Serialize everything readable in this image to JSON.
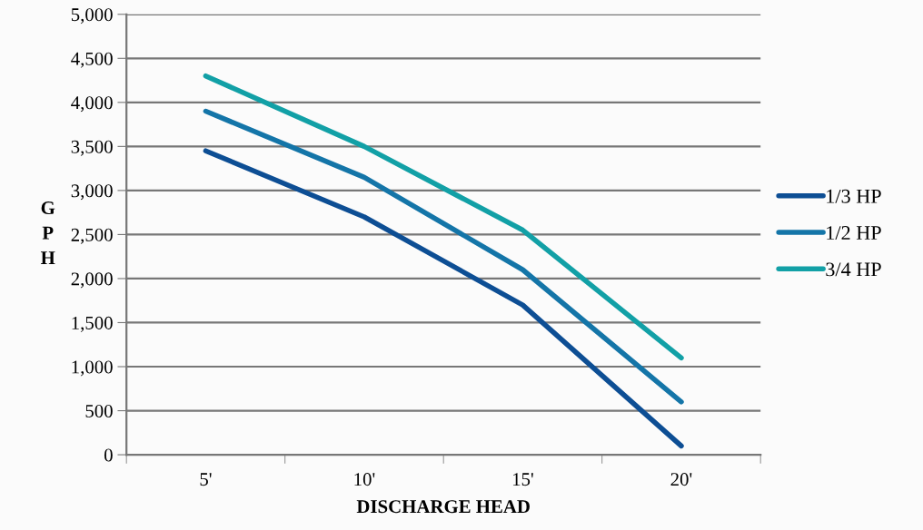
{
  "chart_data": {
    "type": "line",
    "xlabel": "DISCHARGE HEAD",
    "ylabel": "G\nP\nH",
    "categories": [
      "5'",
      "10'",
      "15'",
      "20'"
    ],
    "series": [
      {
        "name": "1/3 HP",
        "color": "#0d4e94",
        "values": [
          3450,
          2700,
          1700,
          100
        ]
      },
      {
        "name": "1/2 HP",
        "color": "#1475a8",
        "values": [
          3900,
          3150,
          2100,
          600
        ]
      },
      {
        "name": "3/4 HP",
        "color": "#12a0a6",
        "values": [
          4300,
          3500,
          2550,
          1100
        ]
      }
    ],
    "ylim": [
      0,
      5000
    ],
    "yticks": [
      {
        "value": 0,
        "label": "0"
      },
      {
        "value": 500,
        "label": "500"
      },
      {
        "value": 1000,
        "label": "1,000"
      },
      {
        "value": 1500,
        "label": "1,500"
      },
      {
        "value": 2000,
        "label": "2,000"
      },
      {
        "value": 2500,
        "label": "2,500"
      },
      {
        "value": 3000,
        "label": "3,000"
      },
      {
        "value": 3500,
        "label": "3,500"
      },
      {
        "value": 4000,
        "label": "4,000"
      },
      {
        "value": 4500,
        "label": "4,500"
      },
      {
        "value": 5000,
        "label": "5,000"
      }
    ],
    "grid": "y",
    "legend": "right",
    "marker": "none",
    "line_style": "solid"
  }
}
